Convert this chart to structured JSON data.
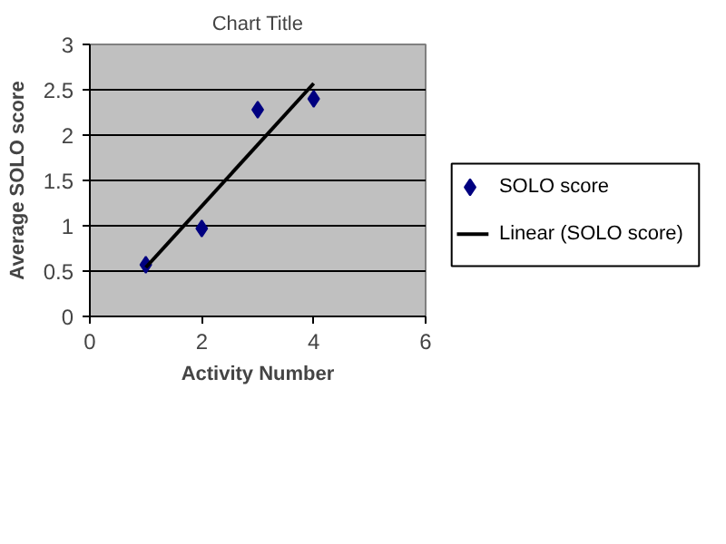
{
  "chart_data": {
    "type": "scatter",
    "title": "Chart Title",
    "xlabel": "Activity Number",
    "ylabel": "Average SOLO score",
    "x": [
      1,
      2,
      3,
      4
    ],
    "series": [
      {
        "name": "SOLO score",
        "color": "#000080",
        "marker": "diamond",
        "values": [
          0.57,
          0.97,
          2.28,
          2.4
        ]
      },
      {
        "name": "Linear (SOLO score)",
        "type": "line",
        "color": "#000000",
        "x": [
          1,
          4
        ],
        "values": [
          0.54,
          2.57
        ],
        "line_style": "solid"
      }
    ],
    "xlim": [
      0,
      6
    ],
    "xticks": [
      0,
      2,
      4,
      6
    ],
    "ylim": [
      0,
      3
    ],
    "yticks": [
      0,
      0.5,
      1,
      1.5,
      2,
      2.5,
      3
    ],
    "grid": "y",
    "legend": "right"
  }
}
